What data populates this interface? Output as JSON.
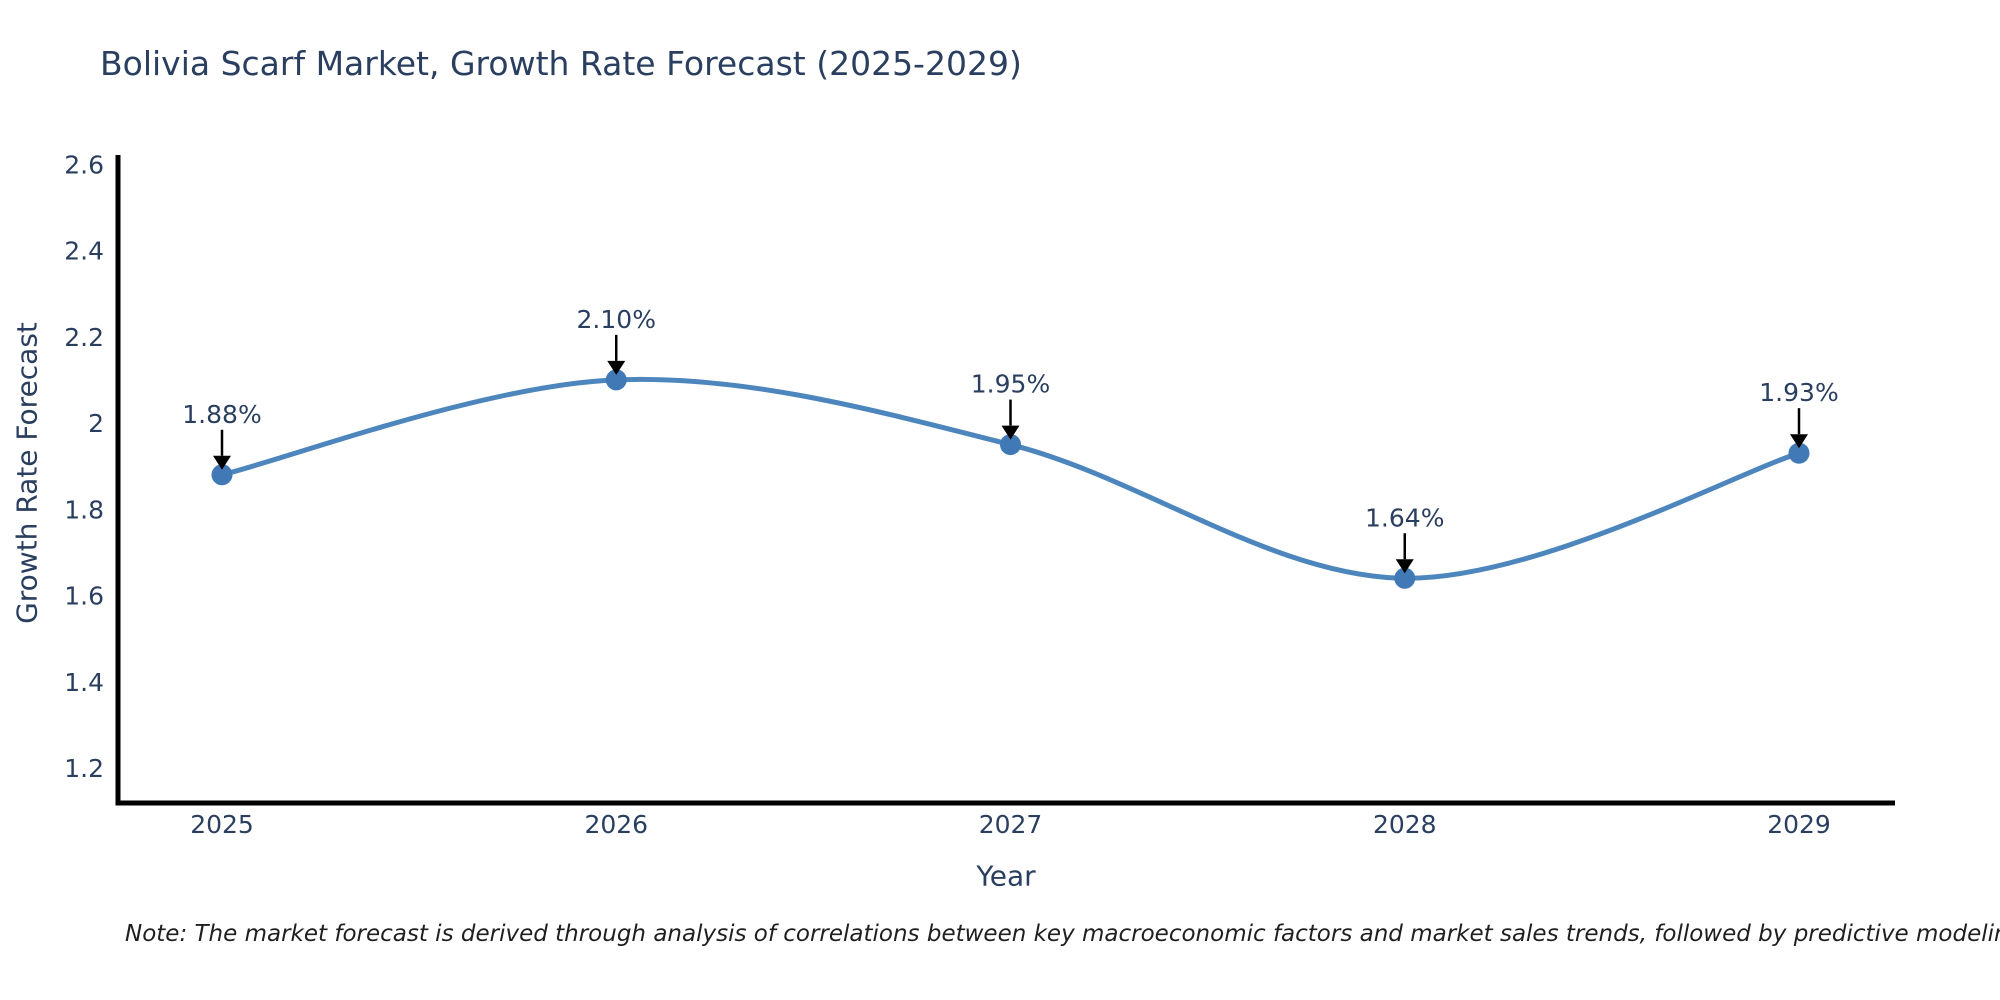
{
  "title": "Bolivia Scarf Market, Growth Rate Forecast (2025-2029)",
  "note": "Note: The market forecast is derived through analysis of correlations between key macroeconomic factors and market sales trends, followed by predictive modeling to project future sales",
  "chart_data": {
    "type": "line",
    "line_shape": "spline",
    "title": "Bolivia Scarf Market, Growth Rate Forecast (2025-2029)",
    "xlabel": "Year",
    "ylabel": "Growth Rate Forecast",
    "categories": [
      2025,
      2026,
      2027,
      2028,
      2029
    ],
    "values": [
      1.88,
      2.1,
      1.95,
      1.64,
      1.93
    ],
    "point_labels": [
      "1.88%",
      "2.10%",
      "1.95%",
      "1.64%",
      "1.93%"
    ],
    "x_tick_labels": [
      "2025",
      "2026",
      "2027",
      "2028",
      "2029"
    ],
    "y_ticks": [
      2.6,
      2.4,
      2.2,
      2.0,
      1.8,
      1.6,
      1.4,
      1.2
    ],
    "y_tick_labels": [
      "2.6",
      "2.4",
      "2.2",
      "2",
      "1.8",
      "1.6",
      "1.4",
      "1.2"
    ],
    "ylim": [
      1.125,
      2.61
    ],
    "grid": false,
    "legend": "none",
    "annotation_style": "value label with downward black arrow to marker",
    "colors": {
      "line": "#4d86bd",
      "marker": "#4079b6",
      "arrow": "#000000",
      "axis_line": "#000000",
      "chart_text": "#2a3f5f",
      "note_text": "#1f1f1f",
      "background": "#ffffff"
    }
  }
}
